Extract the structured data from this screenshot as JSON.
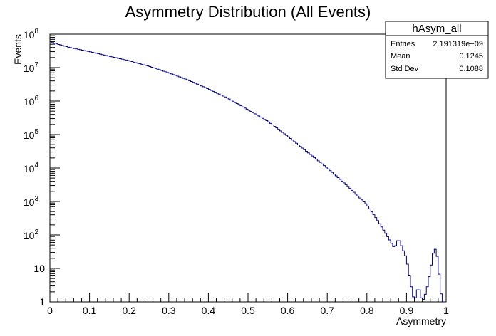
{
  "chart_data": {
    "type": "histogram",
    "title": "Asymmetry Distribution (All Events)",
    "xlabel": "Asymmetry",
    "ylabel": "Events",
    "xlim": [
      0,
      1
    ],
    "ylim": [
      1,
      100000000
    ],
    "yscale": "log",
    "grid": false,
    "line_color": "#00008b",
    "x_tick_labels": [
      "0",
      "0.1",
      "0.2",
      "0.3",
      "0.4",
      "0.5",
      "0.6",
      "0.7",
      "0.8",
      "0.9",
      "1"
    ],
    "y_tick_labels": [
      {
        "base": "1",
        "exp": ""
      },
      {
        "base": "10",
        "exp": ""
      },
      {
        "base": "10",
        "exp": "2"
      },
      {
        "base": "10",
        "exp": "3"
      },
      {
        "base": "10",
        "exp": "4"
      },
      {
        "base": "10",
        "exp": "5"
      },
      {
        "base": "10",
        "exp": "6"
      },
      {
        "base": "10",
        "exp": "7"
      },
      {
        "base": "10",
        "exp": "8"
      }
    ],
    "x": [
      0.0,
      0.02,
      0.05,
      0.1,
      0.15,
      0.2,
      0.25,
      0.3,
      0.35,
      0.4,
      0.45,
      0.5,
      0.55,
      0.6,
      0.65,
      0.7,
      0.75,
      0.8,
      0.825,
      0.85,
      0.87,
      0.88,
      0.89,
      0.9,
      0.91,
      0.92,
      0.93,
      0.94,
      0.95,
      0.96,
      0.965,
      0.97,
      0.975,
      0.98,
      0.985,
      0.99,
      0.995
    ],
    "y": [
      60000000,
      50000000,
      40000000,
      30000000,
      22000000,
      16000000,
      11000000,
      7000000,
      4200000,
      2300000,
      1200000,
      550000,
      250000,
      90000,
      30000,
      10000,
      3000,
      800,
      300,
      100,
      40,
      80,
      40,
      20,
      4,
      1,
      3,
      1,
      2,
      8,
      20,
      40,
      35,
      15,
      3,
      1,
      0
    ],
    "legend": {
      "name": "hAsym_all",
      "rows": [
        {
          "label": "Entries",
          "value": "2.191319e+09"
        },
        {
          "label": "Mean",
          "value": "0.1245"
        },
        {
          "label": "Std Dev",
          "value": "0.1088"
        }
      ],
      "placement": "top-right"
    }
  }
}
